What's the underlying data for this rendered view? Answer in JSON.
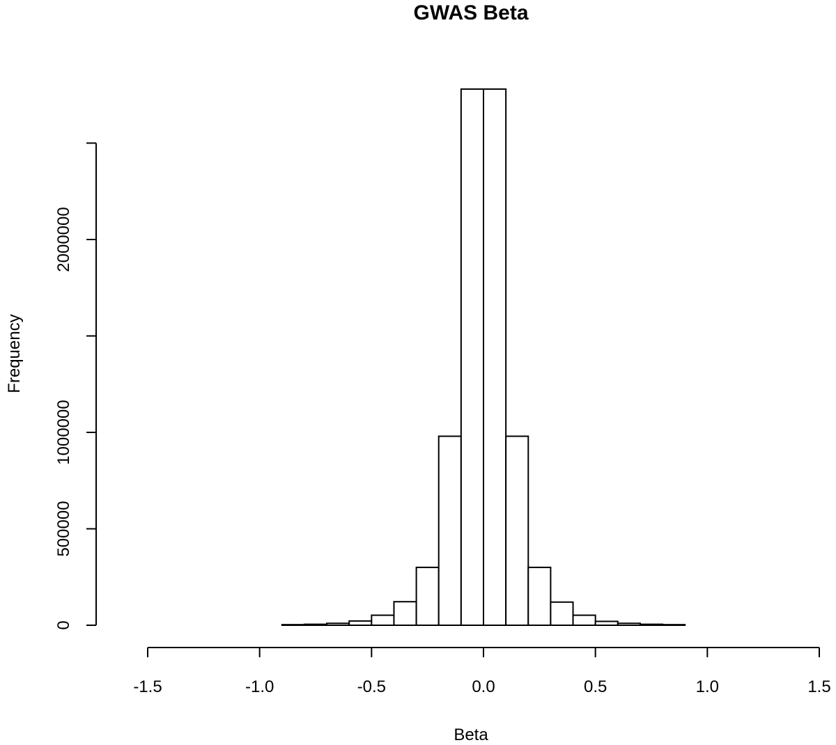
{
  "chart_data": {
    "type": "bar",
    "title": "GWAS Beta",
    "xlabel": "Beta",
    "ylabel": "Frequency",
    "xlim": [
      -1.6,
      1.6
    ],
    "ylim": [
      0,
      2780000
    ],
    "x_ticks": [
      -1.5,
      -1.0,
      -0.5,
      0.0,
      0.5,
      1.0,
      1.5
    ],
    "x_tick_labels": [
      "-1.5",
      "-1.0",
      "-0.5",
      "0.0",
      "0.5",
      "1.0",
      "1.5"
    ],
    "y_ticks": [
      0,
      500000,
      1000000,
      1500000,
      2000000,
      2500000
    ],
    "y_tick_labels": [
      "0",
      "500000",
      "1000000",
      "",
      "2000000",
      ""
    ],
    "bin_edges": [
      -1.6,
      -1.5,
      -1.4,
      -1.3,
      -1.2,
      -1.1,
      -1.0,
      -0.9,
      -0.8,
      -0.7,
      -0.6,
      -0.5,
      -0.4,
      -0.3,
      -0.2,
      -0.1,
      0.0,
      0.1,
      0.2,
      0.3,
      0.4,
      0.5,
      0.6,
      0.7,
      0.8,
      0.9,
      1.0,
      1.1,
      1.2,
      1.3,
      1.4,
      1.5,
      1.6
    ],
    "values": [
      0,
      0,
      0,
      0,
      0,
      0,
      0,
      3000,
      5000,
      10000,
      22000,
      52000,
      122000,
      300000,
      980000,
      2780000,
      2780000,
      980000,
      300000,
      120000,
      52000,
      20000,
      10000,
      5000,
      3000,
      0,
      0,
      0,
      0,
      0,
      0,
      0
    ],
    "bar_fill": "#ffffff",
    "bar_stroke": "#000000"
  }
}
